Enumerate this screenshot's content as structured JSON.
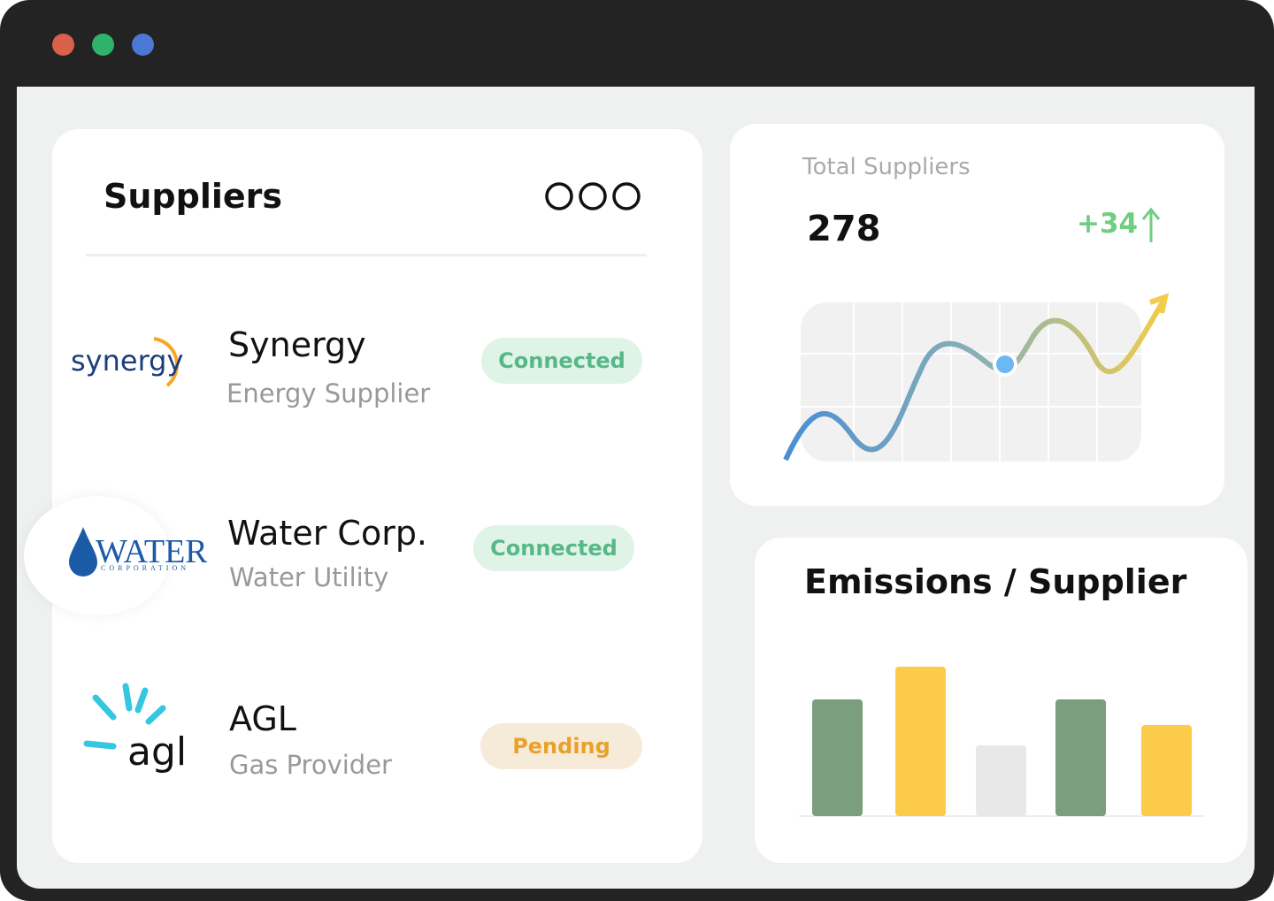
{
  "suppliers_card": {
    "title": "Suppliers",
    "rows": [
      {
        "logo": "synergy",
        "name": "Synergy",
        "subtitle": "Energy Supplier",
        "status": "Connected"
      },
      {
        "logo": "WATER",
        "logo_sub": "CORPORATION",
        "name": "Water Corp.",
        "subtitle": "Water Utility",
        "status": "Connected"
      },
      {
        "logo": "agl",
        "name": "AGL",
        "subtitle": "Gas Provider",
        "status": "Pending"
      }
    ]
  },
  "total_card": {
    "label": "Total Suppliers",
    "value": 278,
    "change": "+34"
  },
  "chart_data": {
    "type": "bar",
    "title": "Emissions / Supplier",
    "values": [
      132,
      169,
      80,
      132,
      103
    ],
    "colors": [
      "#7a9e7e",
      "#fccb4a",
      "#e8e8e8",
      "#7a9e7e",
      "#fccb4a"
    ]
  }
}
